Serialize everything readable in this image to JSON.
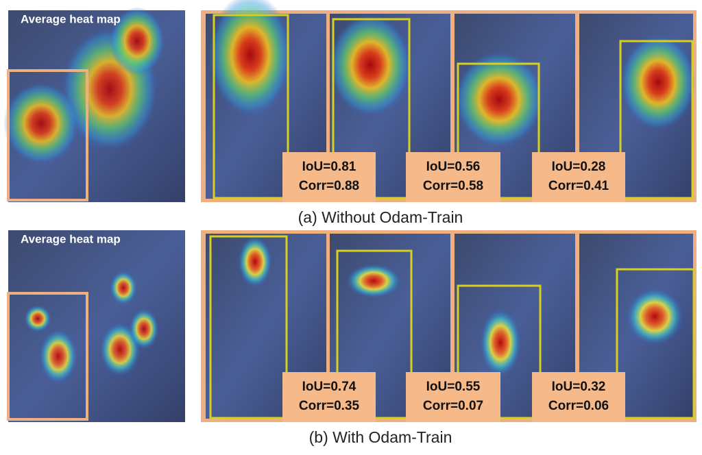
{
  "rows": [
    {
      "average_label": "Average heat map",
      "panels": [
        {
          "iou": "IoU=0.81",
          "corr": "Corr=0.88"
        },
        {
          "iou": "IoU=0.56",
          "corr": "Corr=0.58"
        },
        {
          "iou": "IoU=0.28",
          "corr": "Corr=0.41"
        }
      ],
      "caption": "(a) Without Odam-Train"
    },
    {
      "average_label": "Average heat map",
      "panels": [
        {
          "iou": "IoU=0.74",
          "corr": "Corr=0.35"
        },
        {
          "iou": "IoU=0.55",
          "corr": "Corr=0.07"
        },
        {
          "iou": "IoU=0.32",
          "corr": "Corr=0.06"
        }
      ],
      "caption": "(b) With Odam-Train"
    }
  ]
}
